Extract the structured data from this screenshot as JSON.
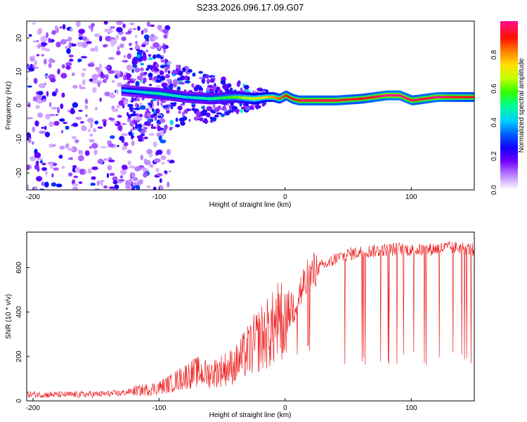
{
  "figure_title": "S233.2026.096.17.09.G07",
  "chart_data": [
    {
      "type": "heatmap",
      "title": "S233.2026.096.17.09.G07",
      "xlabel": "Height of straight line (km)",
      "ylabel": "Frequency (Hz)",
      "xlim": [
        -205,
        150
      ],
      "ylim": [
        -25,
        25
      ],
      "xticks": [
        -200,
        -100,
        0,
        100
      ],
      "yticks": [
        -20,
        -10,
        0,
        10,
        20
      ],
      "ridge": {
        "x": [
          -130,
          -100,
          -80,
          -60,
          -40,
          -25,
          -15,
          -10,
          -5,
          0,
          5,
          10,
          20,
          40,
          60,
          70,
          80,
          90,
          100,
          110,
          120,
          140,
          150
        ],
        "freq": [
          4.5,
          3.5,
          2.5,
          2.0,
          2.5,
          2.0,
          2.5,
          2.5,
          2.0,
          3.0,
          2.0,
          1.5,
          1.5,
          1.5,
          2.0,
          2.5,
          3.0,
          3.0,
          1.5,
          2.0,
          2.5,
          2.5,
          2.5
        ],
        "amplitude": [
          0.4,
          0.5,
          0.45,
          0.5,
          0.6,
          0.7,
          0.75,
          0.8,
          0.85,
          0.9,
          0.9,
          0.95,
          0.95,
          0.95,
          0.9,
          0.95,
          1.0,
          1.0,
          0.95,
          0.95,
          1.0,
          0.9,
          0.9
        ]
      },
      "colorbar": {
        "label": "Normalized spectral amplitude",
        "range": [
          0,
          1
        ],
        "ticks": [
          "0.0",
          "0.2",
          "0.4",
          "0.6",
          "0.8"
        ],
        "colors": [
          "#ffffff",
          "#d8b4ff",
          "#8a2be2",
          "#3300ff",
          "#0000ff",
          "#00bfff",
          "#00ffff",
          "#00ff00",
          "#7fff00",
          "#ffff00",
          "#ff8c00",
          "#ff0000",
          "#ff1493"
        ]
      }
    },
    {
      "type": "line",
      "xlabel": "Height of straight line (km)",
      "ylabel": "SNR (10 * v/v)",
      "xlim": [
        -205,
        150
      ],
      "ylim": [
        0,
        760
      ],
      "xticks": [
        -200,
        -100,
        0,
        100
      ],
      "yticks": [
        0,
        200,
        400,
        600
      ],
      "color": "#ee2222",
      "series": [
        {
          "name": "SNR",
          "x": [
            -205,
            -190,
            -170,
            -150,
            -140,
            -130,
            -120,
            -110,
            -100,
            -90,
            -80,
            -70,
            -60,
            -50,
            -40,
            -30,
            -20,
            -15,
            -10,
            -5,
            0,
            5,
            10,
            15,
            20,
            25,
            30,
            35,
            40,
            50,
            60,
            70,
            80,
            90,
            100,
            110,
            120,
            130,
            140,
            150
          ],
          "y": [
            30,
            28,
            28,
            30,
            32,
            35,
            45,
            50,
            60,
            80,
            110,
            130,
            120,
            140,
            160,
            220,
            280,
            300,
            320,
            360,
            380,
            420,
            470,
            520,
            560,
            590,
            610,
            620,
            640,
            660,
            670,
            675,
            680,
            685,
            680,
            680,
            685,
            690,
            690,
            680
          ]
        }
      ]
    }
  ]
}
